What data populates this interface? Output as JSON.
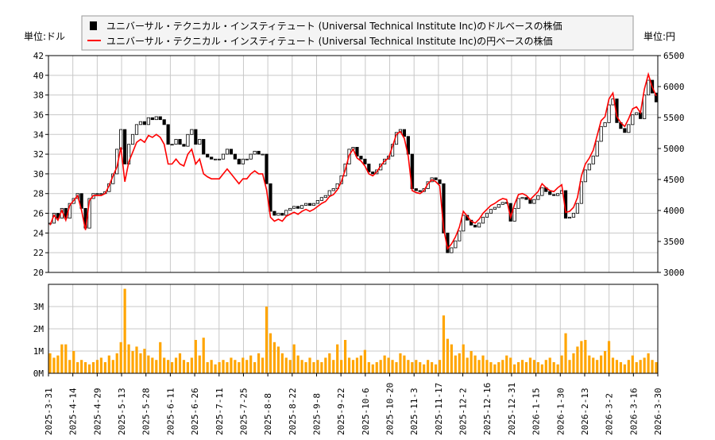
{
  "chart_data": [
    {
      "type": "candlestick+line",
      "title": "",
      "legend": {
        "placement": "top",
        "entries": [
          {
            "label": "ユニバーサル・テクニカル・インスティテュート (Universal Technical Institute Inc)のドルベースの株価",
            "marker": "black-square"
          },
          {
            "label": "ユニバーサル・テクニカル・インスティテュート (Universal Technical Institute Inc)の円ベースの株価",
            "marker": "red-line"
          }
        ]
      },
      "ylabel_left": "単位:ドル",
      "ylabel_right": "単位:円",
      "ylim_left": [
        20,
        42
      ],
      "yticks_left": [
        20,
        22,
        24,
        26,
        28,
        30,
        32,
        34,
        36,
        38,
        40,
        42
      ],
      "ylim_right": [
        3000,
        6500
      ],
      "yticks_right": [
        3000,
        3500,
        4000,
        4500,
        5000,
        5500,
        6000,
        6500
      ],
      "x_range": [
        "2025-3-31",
        "2026-3-30"
      ],
      "grid": true,
      "colors": {
        "usd_up": "#ffffff",
        "usd_down": "#000000",
        "jpy_line": "#ff0000",
        "grid": "#c8c8c8"
      },
      "usd_close": [
        25,
        26,
        25.5,
        26.5,
        25.5,
        27,
        27.5,
        28,
        26.5,
        24.5,
        27.5,
        28,
        28,
        28,
        28.2,
        29,
        30,
        32.5,
        34.5,
        31,
        33,
        34,
        35,
        35.3,
        35,
        35.7,
        35.5,
        35.8,
        35.5,
        35,
        33,
        33,
        33.5,
        33,
        32.8,
        34,
        34.5,
        33,
        33.5,
        32,
        31.7,
        31.5,
        31.5,
        31.5,
        32,
        32.5,
        32,
        31.5,
        31,
        31.5,
        31.5,
        32,
        32.3,
        32,
        32,
        29,
        26.2,
        25.8,
        26,
        25.8,
        26.3,
        26.5,
        26.7,
        26.5,
        26.8,
        27,
        26.8,
        27,
        27.3,
        27.6,
        27.8,
        28.3,
        28.5,
        29,
        29.8,
        31,
        32.5,
        32.7,
        31.8,
        31.5,
        31,
        30.2,
        30,
        30.4,
        31,
        31.5,
        31.8,
        33,
        34.2,
        34.5,
        33.8,
        32,
        28.5,
        28.3,
        28.2,
        28.5,
        29.2,
        29.6,
        29.4,
        29,
        24,
        22,
        22.5,
        23.2,
        24.2,
        25.8,
        25.3,
        24.8,
        24.6,
        25,
        25.6,
        26,
        26.4,
        26.6,
        26.9,
        27.1,
        27,
        25.2,
        26.5,
        27.5,
        27.6,
        27.4,
        27,
        27.4,
        27.8,
        28.6,
        28.2,
        27.9,
        27.8,
        28,
        28.3,
        25.5,
        25.6,
        26,
        27,
        29.2,
        30.4,
        31,
        31.8,
        33.3,
        34.8,
        35.2,
        37,
        37.6,
        35.2,
        34.6,
        34.2,
        35,
        36,
        36.2,
        35.6,
        38,
        39.5,
        38.2,
        37.3
      ],
      "jpy_close": [
        3764,
        3923,
        3843,
        4002,
        3843,
        4082,
        4161,
        4241,
        4002,
        3684,
        4161,
        4241,
        4241,
        4241,
        4273,
        4400,
        4559,
        4702,
        5021,
        4464,
        4782,
        4941,
        5100,
        5148,
        5100,
        5211,
        5180,
        5227,
        5180,
        5068,
        4750,
        4750,
        4830,
        4750,
        4718,
        4909,
        4989,
        4750,
        4830,
        4591,
        4543,
        4511,
        4511,
        4511,
        4591,
        4670,
        4591,
        4511,
        4432,
        4511,
        4511,
        4591,
        4639,
        4591,
        4591,
        4336,
        3891,
        3827,
        3859,
        3827,
        3907,
        3939,
        3971,
        3939,
        3986,
        4018,
        3986,
        4018,
        4066,
        4114,
        4146,
        4225,
        4257,
        4336,
        4464,
        4655,
        4893,
        4989,
        4846,
        4798,
        4718,
        4591,
        4559,
        4623,
        4718,
        4798,
        4846,
        5036,
        5227,
        5275,
        5164,
        4877,
        4321,
        4289,
        4273,
        4321,
        4432,
        4496,
        4464,
        4400,
        3700,
        3382,
        3461,
        3573,
        3732,
        3986,
        3907,
        3827,
        3796,
        3859,
        3955,
        4018,
        4082,
        4114,
        4161,
        4193,
        4177,
        3891,
        4098,
        4257,
        4273,
        4241,
        4177,
        4241,
        4305,
        4432,
        4368,
        4321,
        4305,
        4368,
        4416,
        3971,
        3986,
        4050,
        4209,
        4559,
        4750,
        4846,
        4973,
        5211,
        5450,
        5514,
        5800,
        5896,
        5514,
        5418,
        5355,
        5482,
        5641,
        5673,
        5577,
        5959,
        6198,
        5991,
        5848
      ]
    },
    {
      "type": "bar",
      "title": "",
      "ylim": [
        0,
        4
      ],
      "ytick_labels": [
        "0M",
        "1M",
        "2M",
        "3M"
      ],
      "yticks": [
        0,
        1,
        2,
        3
      ],
      "bar_color": "#ffa500",
      "grid": true,
      "x_tick_labels": [
        "2025-3-31",
        "2025-4-14",
        "2025-4-29",
        "2025-5-13",
        "2025-5-28",
        "2025-6-11",
        "2025-6-26",
        "2025-7-11",
        "2025-7-25",
        "2025-8-8",
        "2025-8-22",
        "2025-9-8",
        "2025-9-22",
        "2025-10-6",
        "2025-10-20",
        "2025-11-3",
        "2025-11-17",
        "2025-12-2",
        "2025-12-16",
        "2025-12-31",
        "2026-1-15",
        "2026-1-30",
        "2026-2-13",
        "2026-3-2",
        "2026-3-16",
        "2026-3-30"
      ],
      "volume_millions": [
        0.9,
        0.7,
        0.8,
        1.3,
        1.3,
        0.6,
        1.0,
        0.5,
        0.6,
        0.5,
        0.4,
        0.5,
        0.6,
        0.7,
        0.5,
        0.8,
        0.6,
        0.9,
        1.4,
        3.8,
        1.3,
        1.0,
        1.2,
        0.9,
        1.1,
        0.8,
        0.7,
        0.6,
        1.4,
        0.7,
        0.6,
        0.5,
        0.7,
        0.9,
        0.6,
        0.5,
        0.7,
        1.5,
        0.8,
        1.6,
        0.5,
        0.6,
        0.4,
        0.5,
        0.6,
        0.5,
        0.7,
        0.6,
        0.5,
        0.7,
        0.6,
        0.8,
        0.5,
        0.9,
        0.7,
        3.0,
        1.8,
        1.4,
        1.2,
        0.9,
        0.7,
        0.6,
        1.3,
        0.8,
        0.6,
        0.5,
        0.7,
        0.5,
        0.6,
        0.5,
        0.7,
        0.9,
        0.6,
        1.3,
        0.6,
        1.5,
        0.7,
        0.6,
        0.7,
        0.8,
        1.05,
        0.5,
        0.4,
        0.5,
        0.6,
        0.8,
        0.7,
        0.6,
        0.5,
        0.9,
        0.8,
        0.6,
        0.5,
        0.6,
        0.5,
        0.4,
        0.6,
        0.5,
        0.4,
        0.6,
        2.6,
        1.55,
        1.3,
        0.8,
        0.9,
        1.3,
        0.7,
        1.0,
        0.8,
        0.6,
        0.8,
        0.6,
        0.5,
        0.4,
        0.5,
        0.6,
        0.8,
        0.7,
        0.4,
        0.5,
        0.6,
        0.5,
        0.7,
        0.6,
        0.5,
        0.4,
        0.6,
        0.7,
        0.5,
        0.4,
        0.8,
        1.8,
        0.6,
        0.9,
        1.2,
        1.45,
        1.5,
        0.8,
        0.7,
        0.6,
        0.8,
        1.0,
        1.45,
        0.7,
        0.6,
        0.5,
        0.4,
        0.6,
        0.8,
        0.5,
        0.6,
        0.7,
        0.9,
        0.6,
        0.5
      ]
    }
  ]
}
